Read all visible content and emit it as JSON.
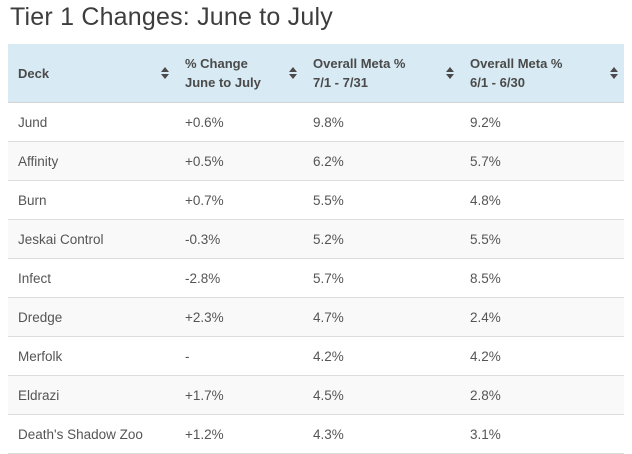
{
  "page": {
    "title": "Tier 1 Changes: June to July"
  },
  "table": {
    "columns": [
      {
        "line1": "Deck",
        "line2": "",
        "sortable": true
      },
      {
        "line1": "% Change",
        "line2": "June to July",
        "sortable": true
      },
      {
        "line1": "Overall Meta %",
        "line2": "7/1 - 7/31",
        "sortable": true
      },
      {
        "line1": "Overall Meta %",
        "line2": "6/1 - 6/30",
        "sortable": true
      }
    ],
    "column_keys": [
      "deck-cell",
      "pct-change-cell",
      "meta-july-cell",
      "meta-june-cell"
    ],
    "rows": [
      [
        "Jund",
        "+0.6%",
        "9.8%",
        "9.2%"
      ],
      [
        "Affinity",
        "+0.5%",
        "6.2%",
        "5.7%"
      ],
      [
        "Burn",
        "+0.7%",
        "5.5%",
        "4.8%"
      ],
      [
        "Jeskai Control",
        "-0.3%",
        "5.2%",
        "5.5%"
      ],
      [
        "Infect",
        "-2.8%",
        "5.7%",
        "8.5%"
      ],
      [
        "Dredge",
        "+2.3%",
        "4.7%",
        "2.4%"
      ],
      [
        "Merfolk",
        "-",
        "4.2%",
        "4.2%"
      ],
      [
        "Eldrazi",
        "+1.7%",
        "4.5%",
        "2.8%"
      ],
      [
        "Death's Shadow Zoo",
        "+1.2%",
        "4.3%",
        "3.1%"
      ]
    ]
  },
  "icons": {
    "sort": "sort-icon"
  },
  "colors": {
    "header_bg": "#d8eaf3",
    "row_alt_bg": "#f9f9f9",
    "row_border": "#dddddd",
    "title_text": "#3d3d3d",
    "body_text": "#555555",
    "header_text": "#4a4a4a",
    "sort_icon": "#4a4a4a"
  }
}
